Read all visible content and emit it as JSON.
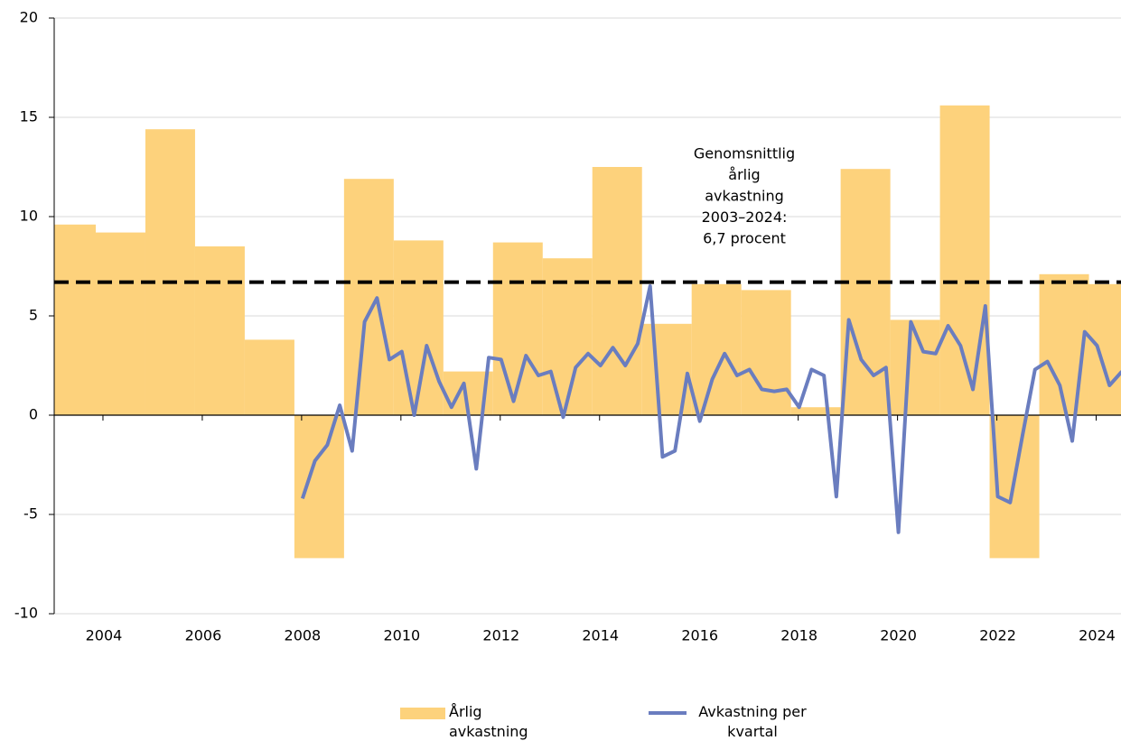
{
  "chart_data": {
    "type": "bar+line",
    "xlim": [
      2003,
      2024.5
    ],
    "xticks": [
      2004,
      2006,
      2008,
      2010,
      2012,
      2014,
      2016,
      2018,
      2020,
      2022,
      2024
    ],
    "ylim": [
      -10,
      20
    ],
    "yticks": [
      -10,
      -5,
      0,
      5,
      10,
      15,
      20
    ],
    "grid": true,
    "series": [
      {
        "name": "Årlig avkastning",
        "type": "bar",
        "color": "#fdd27c",
        "x": [
          2003,
          2004,
          2005,
          2006,
          2007,
          2008,
          2009,
          2010,
          2011,
          2012,
          2013,
          2014,
          2015,
          2016,
          2017,
          2018,
          2019,
          2020,
          2021,
          2022,
          2023,
          2024
        ],
        "values": [
          9.6,
          9.2,
          14.4,
          8.5,
          3.8,
          -7.2,
          11.9,
          8.8,
          2.2,
          8.7,
          7.9,
          12.5,
          4.6,
          6.6,
          6.3,
          0.4,
          12.4,
          4.8,
          15.6,
          -7.2,
          7.1,
          6.6
        ]
      },
      {
        "name": "Avkastning per kvartal",
        "type": "line",
        "color": "#6a7dbf",
        "x": [
          2008,
          2008.25,
          2008.5,
          2008.75,
          2009,
          2009.25,
          2009.5,
          2009.75,
          2010,
          2010.25,
          2010.5,
          2010.75,
          2011,
          2011.25,
          2011.5,
          2011.75,
          2012,
          2012.25,
          2012.5,
          2012.75,
          2013,
          2013.25,
          2013.5,
          2013.75,
          2014,
          2014.25,
          2014.5,
          2014.75,
          2015,
          2015.25,
          2015.5,
          2015.75,
          2016,
          2016.25,
          2016.5,
          2016.75,
          2017,
          2017.25,
          2017.5,
          2017.75,
          2018,
          2018.25,
          2018.5,
          2018.75,
          2019,
          2019.25,
          2019.5,
          2019.75,
          2020,
          2020.25,
          2020.5,
          2020.75,
          2021,
          2021.25,
          2021.5,
          2021.75,
          2022,
          2022.25,
          2022.5,
          2022.75,
          2023,
          2023.25,
          2023.5,
          2023.75,
          2024,
          2024.25,
          2024.5
        ],
        "values": [
          -4.2,
          -2.3,
          -1.5,
          0.5,
          -1.8,
          4.7,
          5.9,
          2.8,
          3.2,
          0.0,
          3.5,
          1.7,
          0.4,
          1.6,
          -2.7,
          2.9,
          2.8,
          0.7,
          3.0,
          2.0,
          2.2,
          -0.1,
          2.4,
          3.1,
          2.5,
          3.4,
          2.5,
          3.6,
          6.5,
          -2.1,
          -1.8,
          2.1,
          -0.3,
          1.8,
          3.1,
          2.0,
          2.3,
          1.3,
          1.2,
          1.3,
          0.4,
          2.3,
          2.0,
          -4.1,
          4.8,
          2.8,
          2.0,
          2.4,
          -5.9,
          4.7,
          3.2,
          3.1,
          4.5,
          3.5,
          1.3,
          5.5,
          -4.1,
          -4.4,
          -1.0,
          2.3,
          2.7,
          1.5,
          -1.3,
          4.2,
          3.5,
          1.5,
          2.2
        ]
      }
    ],
    "average": {
      "value": 6.7,
      "lines": [
        "Genomsnittlig",
        "årlig",
        "avkastning",
        "2003–2024:",
        "6,7 procent"
      ]
    }
  }
}
